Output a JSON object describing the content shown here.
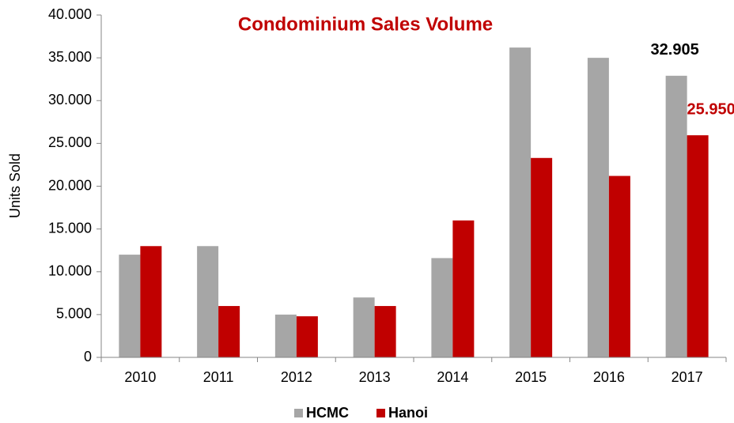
{
  "chart_data": {
    "type": "bar",
    "title": "Condominium Sales Volume",
    "y_label": "Units Sold",
    "categories": [
      "2010",
      "2011",
      "2012",
      "2013",
      "2014",
      "2015",
      "2016",
      "2017"
    ],
    "series": [
      {
        "name": "HCMC",
        "color": "#a6a6a6",
        "label_color": "#000000",
        "values": [
          12000,
          13000,
          5000,
          7000,
          11600,
          36200,
          35000,
          32905
        ],
        "value_labels": [
          null,
          null,
          null,
          null,
          null,
          null,
          null,
          "32.905"
        ]
      },
      {
        "name": "Hanoi",
        "color": "#c00000",
        "label_color": "#c00000",
        "values": [
          13000,
          6000,
          4800,
          6000,
          16000,
          23300,
          21200,
          25950
        ],
        "value_labels": [
          null,
          null,
          null,
          null,
          null,
          null,
          null,
          "25.950"
        ]
      }
    ],
    "ylim": [
      0,
      40000
    ],
    "yticks": [
      0,
      {
        "value": 5000,
        "label": "5.000"
      },
      {
        "value": 10000,
        "label": "10.000"
      },
      {
        "value": 15000,
        "label": "15.000"
      },
      {
        "value": 20000,
        "label": "20.000"
      },
      {
        "value": 25000,
        "label": "25.000"
      },
      {
        "value": 30000,
        "label": "30.000"
      },
      {
        "value": 35000,
        "label": "35.000"
      },
      {
        "value": 40000,
        "label": "40.000"
      }
    ],
    "grid": false,
    "legend": "bottom"
  }
}
